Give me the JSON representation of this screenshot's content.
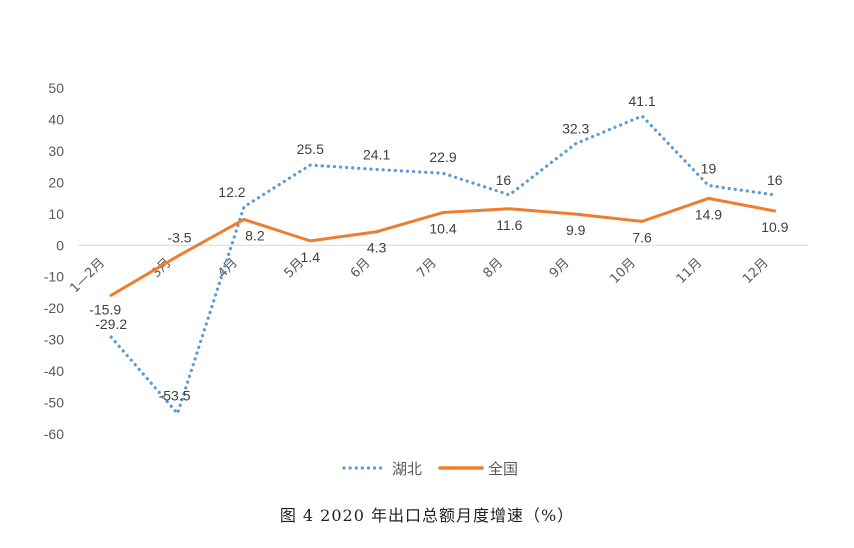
{
  "caption": "图 4   2020 年出口总额月度增速（%）",
  "chart_data": {
    "type": "line",
    "categories": [
      "1—2月",
      "3月",
      "4月",
      "5月",
      "6月",
      "7月",
      "8月",
      "9月",
      "10月",
      "11月",
      "12月"
    ],
    "ylim": [
      -60,
      50
    ],
    "yticks": [
      50,
      40,
      30,
      20,
      10,
      0,
      -10,
      -20,
      -30,
      -40,
      -50,
      -60
    ],
    "grid": false,
    "legend_position": "bottom",
    "series": [
      {
        "name": "湖北",
        "color": "#5B9BD5",
        "style": "dotted",
        "values": [
          -29.2,
          -53.5,
          12.2,
          25.5,
          24.1,
          22.9,
          16,
          32.3,
          41.1,
          19,
          16
        ]
      },
      {
        "name": "全国",
        "color": "#ED7D31",
        "style": "solid",
        "values": [
          -15.9,
          -3.5,
          8.2,
          1.4,
          4.3,
          10.4,
          11.6,
          9.9,
          7.6,
          14.9,
          10.9
        ]
      }
    ]
  }
}
